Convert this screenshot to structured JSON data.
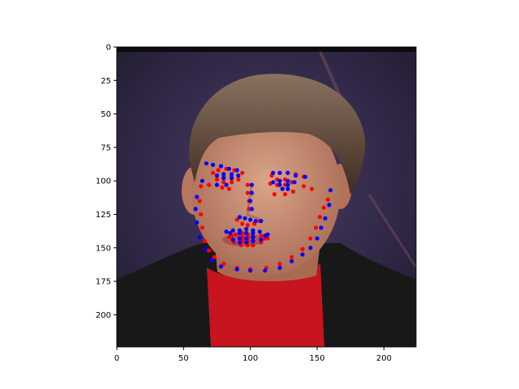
{
  "chart_data": {
    "type": "scatter",
    "title": "",
    "xlabel": "",
    "ylabel": "",
    "xlim": [
      0,
      224
    ],
    "ylim": [
      224,
      0
    ],
    "x_ticks": [
      0,
      50,
      100,
      150,
      200
    ],
    "y_ticks": [
      0,
      25,
      50,
      75,
      100,
      125,
      150,
      175,
      200
    ],
    "grid": false,
    "legend": "none",
    "background": "image of a man's face",
    "colors": {
      "red": "#ff0000",
      "blue": "#0000ff",
      "shirt": "#c8141e",
      "jacket": "#181818",
      "skin": "#c98c70",
      "hair": "#5c4636",
      "backdrop": "#3a2d52"
    },
    "series": [
      {
        "color": "red",
        "points": [
          [
            63,
            104
          ],
          [
            62,
            115
          ],
          [
            63,
            125
          ],
          [
            64,
            135
          ],
          [
            66,
            145
          ],
          [
            69,
            152
          ],
          [
            73,
            157
          ],
          [
            80,
            162
          ],
          [
            90,
            165
          ],
          [
            100,
            166
          ],
          [
            112,
            165
          ],
          [
            122,
            162
          ],
          [
            131,
            157
          ],
          [
            139,
            151
          ],
          [
            145,
            143
          ],
          [
            149,
            135
          ],
          [
            152,
            127
          ],
          [
            155,
            120
          ],
          [
            158,
            114
          ],
          [
            72,
            94
          ],
          [
            76,
            92
          ],
          [
            82,
            91
          ],
          [
            88,
            92
          ],
          [
            94,
            94
          ],
          [
            116,
            96
          ],
          [
            122,
            94
          ],
          [
            128,
            94
          ],
          [
            134,
            95
          ],
          [
            140,
            97
          ],
          [
            98,
            103
          ],
          [
            98,
            109
          ],
          [
            99,
            115
          ],
          [
            99,
            121
          ],
          [
            90,
            129
          ],
          [
            94,
            132
          ],
          [
            98,
            133
          ],
          [
            103,
            132
          ],
          [
            107,
            130
          ],
          [
            75,
            99
          ],
          [
            80,
            97
          ],
          [
            86,
            97
          ],
          [
            91,
            99
          ],
          [
            86,
            101
          ],
          [
            80,
            101
          ],
          [
            115,
            102
          ],
          [
            120,
            99
          ],
          [
            126,
            99
          ],
          [
            131,
            101
          ],
          [
            126,
            103
          ],
          [
            120,
            103
          ],
          [
            84,
            142
          ],
          [
            89,
            140
          ],
          [
            94,
            139
          ],
          [
            98,
            140
          ],
          [
            102,
            139
          ],
          [
            108,
            141
          ],
          [
            113,
            143
          ],
          [
            108,
            146
          ],
          [
            102,
            148
          ],
          [
            98,
            148
          ],
          [
            93,
            148
          ],
          [
            88,
            146
          ],
          [
            86,
            141
          ],
          [
            94,
            142
          ],
          [
            98,
            142
          ],
          [
            102,
            142
          ],
          [
            111,
            143
          ],
          [
            102,
            145
          ],
          [
            98,
            145
          ],
          [
            94,
            145
          ],
          [
            69,
            103
          ],
          [
            79,
            105
          ],
          [
            84,
            106
          ],
          [
            118,
            110
          ],
          [
            126,
            110
          ],
          [
            132,
            108
          ],
          [
            140,
            104
          ],
          [
            146,
            106
          ]
        ]
      },
      {
        "color": "blue",
        "points": [
          [
            60,
            112
          ],
          [
            59,
            121
          ],
          [
            60,
            131
          ],
          [
            62,
            142
          ],
          [
            66,
            151
          ],
          [
            71,
            159
          ],
          [
            78,
            164
          ],
          [
            90,
            166
          ],
          [
            100,
            167
          ],
          [
            111,
            167
          ],
          [
            122,
            165
          ],
          [
            131,
            160
          ],
          [
            139,
            155
          ],
          [
            145,
            150
          ],
          [
            150,
            143
          ],
          [
            153,
            135
          ],
          [
            156,
            128
          ],
          [
            159,
            118
          ],
          [
            160,
            107
          ],
          [
            67,
            87
          ],
          [
            72,
            88
          ],
          [
            78,
            89
          ],
          [
            84,
            91
          ],
          [
            90,
            92
          ],
          [
            117,
            94
          ],
          [
            122,
            94
          ],
          [
            128,
            94
          ],
          [
            134,
            96
          ],
          [
            141,
            97
          ],
          [
            101,
            103
          ],
          [
            101,
            109
          ],
          [
            100,
            115
          ],
          [
            101,
            121
          ],
          [
            92,
            127
          ],
          [
            96,
            128
          ],
          [
            100,
            129
          ],
          [
            104,
            130
          ],
          [
            108,
            130
          ],
          [
            75,
            96
          ],
          [
            80,
            95
          ],
          [
            86,
            95
          ],
          [
            91,
            96
          ],
          [
            86,
            98
          ],
          [
            80,
            98
          ],
          [
            117,
            101
          ],
          [
            122,
            100
          ],
          [
            128,
            100
          ],
          [
            133,
            101
          ],
          [
            128,
            103
          ],
          [
            122,
            103
          ],
          [
            82,
            138
          ],
          [
            87,
            137
          ],
          [
            92,
            137
          ],
          [
            97,
            136
          ],
          [
            102,
            137
          ],
          [
            107,
            138
          ],
          [
            113,
            140
          ],
          [
            108,
            144
          ],
          [
            102,
            145
          ],
          [
            97,
            146
          ],
          [
            92,
            146
          ],
          [
            87,
            144
          ],
          [
            85,
            139
          ],
          [
            92,
            139
          ],
          [
            97,
            139
          ],
          [
            102,
            139
          ],
          [
            111,
            141
          ],
          [
            102,
            142
          ],
          [
            97,
            143
          ],
          [
            92,
            143
          ],
          [
            75,
            103
          ],
          [
            82,
            103
          ],
          [
            124,
            106
          ],
          [
            128,
            106
          ],
          [
            64,
            100
          ]
        ]
      }
    ]
  }
}
